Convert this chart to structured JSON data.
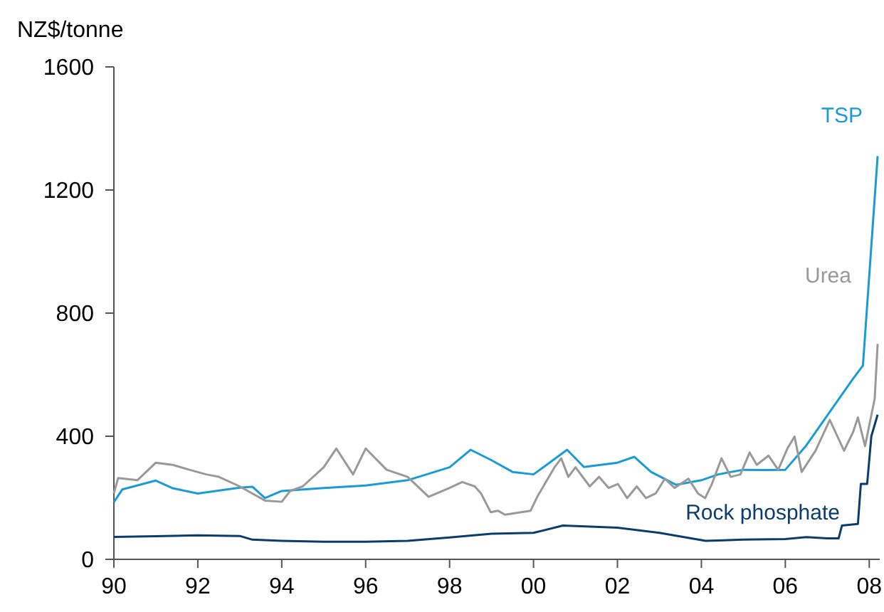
{
  "chart_data": {
    "type": "line",
    "ylabel": "NZ$/tonne",
    "xlim": [
      1990,
      2008.25
    ],
    "ylim": [
      0,
      1600
    ],
    "yticks": [
      0,
      400,
      800,
      1200,
      1600
    ],
    "xticks": [
      {
        "value": 1990,
        "label": "90"
      },
      {
        "value": 1992,
        "label": "92"
      },
      {
        "value": 1994,
        "label": "94"
      },
      {
        "value": 1996,
        "label": "96"
      },
      {
        "value": 1998,
        "label": "98"
      },
      {
        "value": 2000,
        "label": "00"
      },
      {
        "value": 2002,
        "label": "02"
      },
      {
        "value": 2004,
        "label": "04"
      },
      {
        "value": 2006,
        "label": "06"
      },
      {
        "value": 2008,
        "label": "08"
      }
    ],
    "grid": false,
    "marker": "none",
    "line_style": "solid",
    "series": [
      {
        "name": "TSP",
        "color": "#1a9bd7",
        "x": [
          1990,
          1990.2,
          1991,
          1991.4,
          1992,
          1993,
          1993.3,
          1993.6,
          1994,
          1995,
          1996,
          1997,
          1998,
          1998.5,
          1999,
          1999.5,
          2000,
          2000.8,
          2001.2,
          2002,
          2002.4,
          2002.8,
          2003.4,
          2004,
          2004.4,
          2005,
          2005.5,
          2006,
          2006.5,
          2007.6,
          2007.85,
          2008.2
        ],
        "values": [
          186,
          227,
          256,
          231,
          214,
          233,
          236,
          199,
          222,
          232,
          240,
          257,
          299,
          356,
          322,
          284,
          276,
          356,
          300,
          314,
          333,
          284,
          242,
          257,
          276,
          291,
          290,
          291,
          370,
          584,
          630,
          1310
        ]
      },
      {
        "name": "Urea",
        "color": "#999999",
        "x": [
          1990,
          1990.1,
          1990.56,
          1991,
          1991.4,
          1991.8,
          1992.2,
          1992.5,
          1993,
          1993.3,
          1993.6,
          1994,
          1994.2,
          1994.5,
          1995,
          1995.3,
          1995.7,
          1996,
          1996.5,
          1997,
          1997.5,
          1998,
          1998.3,
          1998.6,
          1998.75,
          1998.98,
          1999.15,
          1999.32,
          1999.93,
          2000.1,
          2000.5,
          2000.66,
          2000.83,
          2001,
          2001.34,
          2001.56,
          2001.79,
          2002.01,
          2002.23,
          2002.46,
          2002.68,
          2002.91,
          2003.13,
          2003.36,
          2003.69,
          2003.92,
          2004.09,
          2004.25,
          2004.48,
          2004.7,
          2004.93,
          2005.15,
          2005.32,
          2005.6,
          2005.83,
          2006.05,
          2006.22,
          2006.39,
          2006.72,
          2007.06,
          2007.4,
          2007.62,
          2007.73,
          2007.9,
          2008.13,
          2008.2
        ],
        "values": [
          214,
          264,
          257,
          314,
          307,
          291,
          276,
          268,
          237,
          214,
          191,
          187,
          222,
          237,
          299,
          360,
          276,
          360,
          291,
          268,
          203,
          232,
          251,
          237,
          214,
          153,
          158,
          145,
          158,
          206,
          299,
          328,
          268,
          299,
          237,
          268,
          232,
          245,
          199,
          237,
          199,
          214,
          262,
          232,
          262,
          214,
          199,
          245,
          328,
          268,
          276,
          347,
          307,
          337,
          291,
          360,
          399,
          284,
          353,
          453,
          353,
          415,
          461,
          368,
          522,
          700
        ]
      },
      {
        "name": "Rock phosphate",
        "color": "#0a3d6e",
        "x": [
          1990,
          1991,
          1992,
          1993,
          1993.3,
          1994,
          1995,
          1996,
          1997,
          1998,
          1999,
          2000,
          2000.7,
          2002,
          2003,
          2004.1,
          2005,
          2006,
          2006.5,
          2007,
          2007.27,
          2007.35,
          2007.73,
          2007.8,
          2007.95,
          2008.05,
          2008.2
        ],
        "values": [
          73,
          75,
          78,
          76,
          64,
          60,
          57,
          57,
          60,
          71,
          83,
          86,
          110,
          103,
          86,
          60,
          64,
          66,
          72,
          68,
          68,
          110,
          115,
          245,
          245,
          400,
          470
        ]
      }
    ]
  }
}
